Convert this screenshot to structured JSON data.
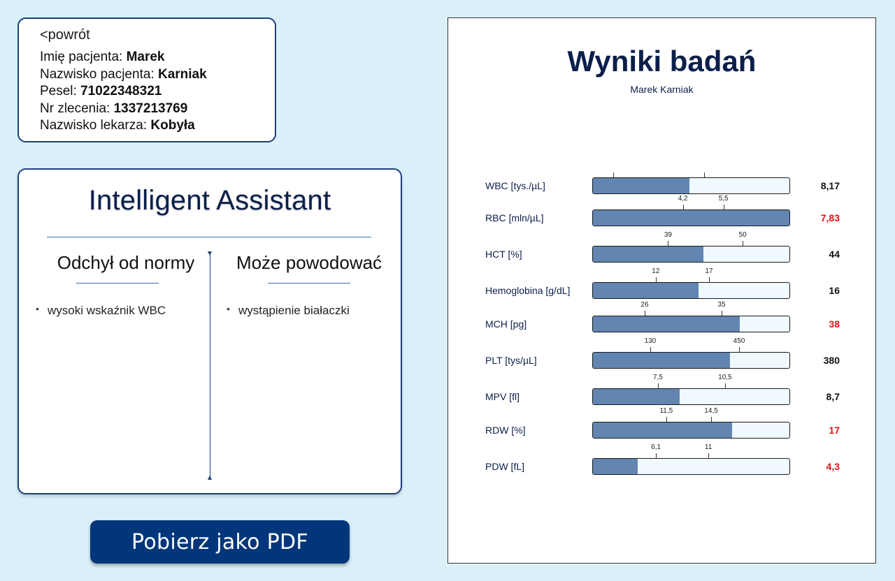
{
  "patient": {
    "back_label": "<powrót",
    "rows": [
      {
        "label": "Imię pacjenta: ",
        "value": "Marek"
      },
      {
        "label": "Nazwisko pacjenta: ",
        "value": "Karniak"
      },
      {
        "label": "Pesel: ",
        "value": "71022348321"
      },
      {
        "label": "Nr zlecenia: ",
        "value": "1337213769"
      },
      {
        "label": "Nazwisko lekarza: ",
        "value": "Kobyła"
      }
    ]
  },
  "assistant": {
    "title": "Intelligent Assistant",
    "left_heading": "Odchył od normy",
    "right_heading": "Może powodować",
    "left_items": [
      "wysoki wskaźnik WBC"
    ],
    "right_items": [
      "wystąpienie białaczki"
    ]
  },
  "pdf_button_label": "Pobierz jako PDF",
  "report": {
    "title": "Wyniki badań",
    "subtitle": "Marek Karniak",
    "tests": [
      {
        "name": "WBC [tys./µL]",
        "value": "8,17",
        "abnormal": false,
        "low": "",
        "high": "",
        "low_num": 4,
        "high_num": 10,
        "value_num": 8.17,
        "fill": 0.49,
        "low_pos": 0.105,
        "high_pos": 0.565
      },
      {
        "name": "RBC [mln/µL]",
        "value": "7,83",
        "abnormal": true,
        "low": "4,2",
        "high": "5,5",
        "low_num": 4.2,
        "high_num": 5.5,
        "value_num": 7.83,
        "fill": 1.0,
        "low_pos": 0.458,
        "high_pos": 0.663
      },
      {
        "name": "HCT [%]",
        "value": "44",
        "abnormal": false,
        "low": "39",
        "high": "50",
        "low_num": 39,
        "high_num": 50,
        "value_num": 44,
        "fill": 0.562,
        "low_pos": 0.383,
        "high_pos": 0.76
      },
      {
        "name": "Hemoglobina [g/dL]",
        "value": "16",
        "abnormal": false,
        "low": "12",
        "high": "17",
        "low_num": 12,
        "high_num": 17,
        "value_num": 16,
        "fill": 0.537,
        "low_pos": 0.321,
        "high_pos": 0.59
      },
      {
        "name": "MCH [pg]",
        "value": "38",
        "abnormal": true,
        "low": "26",
        "high": "35",
        "low_num": 26,
        "high_num": 35,
        "value_num": 38,
        "fill": 0.746,
        "low_pos": 0.265,
        "high_pos": 0.654
      },
      {
        "name": "PLT [tys/µL]",
        "value": "380",
        "abnormal": false,
        "low": "130",
        "high": "450",
        "low_num": 130,
        "high_num": 450,
        "value_num": 380,
        "fill": 0.696,
        "low_pos": 0.293,
        "high_pos": 0.742
      },
      {
        "name": "MPV [fl]",
        "value": "8,7",
        "abnormal": false,
        "low": "7,5",
        "high": "10,5",
        "low_num": 7.5,
        "high_num": 10.5,
        "value_num": 8.7,
        "fill": 0.442,
        "low_pos": 0.332,
        "high_pos": 0.671
      },
      {
        "name": "RDW [%]",
        "value": "17",
        "abnormal": true,
        "low": "11,5",
        "high": "14,5",
        "low_num": 11.5,
        "high_num": 14.5,
        "value_num": 17,
        "fill": 0.707,
        "low_pos": 0.374,
        "high_pos": 0.601
      },
      {
        "name": "PDW [fL]",
        "value": "4,3",
        "abnormal": true,
        "low": "6,1",
        "high": "11",
        "low_num": 6.1,
        "high_num": 11,
        "value_num": 4.3,
        "fill": 0.226,
        "low_pos": 0.322,
        "high_pos": 0.587
      }
    ]
  }
}
